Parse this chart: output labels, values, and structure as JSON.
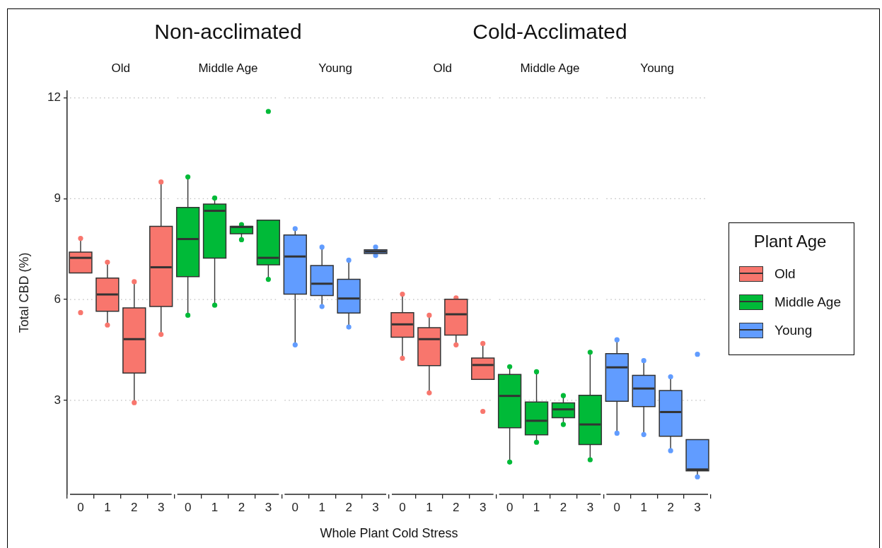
{
  "chart_data": {
    "type": "box",
    "xlabel": "Whole Plant Cold Stress",
    "ylabel": "Total CBD (%)",
    "legend": "right",
    "legend_title": "Plant Age",
    "annotations": [
      "Non-acclimated",
      "Cold-Acclimated"
    ],
    "categories": [
      "0",
      "1",
      "2",
      "3",
      "0",
      "1",
      "2",
      "3",
      "0",
      "1",
      "2",
      "3",
      "0",
      "1",
      "2",
      "3",
      "0",
      "1",
      "2",
      "3",
      "0",
      "1",
      "2",
      "3"
    ],
    "ylim": [
      0.2,
      12.2
    ],
    "yticks": [
      3,
      6,
      9,
      12
    ],
    "grid": "y",
    "series": [
      {
        "name": "Old",
        "color": "#f8766d",
        "boxes": [
          {
            "low": 6.79,
            "q1": 6.79,
            "median": 7.24,
            "q3": 7.41,
            "high": 7.82,
            "outliers": [
              7.82,
              5.61
            ]
          },
          {
            "low": 5.26,
            "q1": 5.65,
            "median": 6.15,
            "q3": 6.64,
            "high": 7.11,
            "outliers": [
              7.11,
              5.24
            ]
          },
          {
            "low": 2.95,
            "q1": 3.81,
            "median": 4.82,
            "q3": 5.75,
            "high": 6.53,
            "outliers": [
              6.53,
              2.93
            ]
          },
          {
            "low": 4.96,
            "q1": 5.79,
            "median": 6.96,
            "q3": 8.18,
            "high": 9.5,
            "outliers": [
              9.5,
              4.96
            ]
          },
          null,
          null,
          null,
          null,
          null,
          null,
          null,
          null,
          {
            "low": 4.29,
            "q1": 4.88,
            "median": 5.26,
            "q3": 5.61,
            "high": 6.16,
            "outliers": [
              6.16,
              4.25
            ]
          },
          {
            "low": 3.25,
            "q1": 4.03,
            "median": 4.82,
            "q3": 5.16,
            "high": 5.53,
            "outliers": [
              5.53,
              3.22
            ]
          },
          {
            "low": 4.65,
            "q1": 4.94,
            "median": 5.56,
            "q3": 6.01,
            "high": 6.01,
            "outliers": [
              6.05,
              4.65
            ]
          },
          {
            "low": 3.62,
            "q1": 3.62,
            "median": 4.05,
            "q3": 4.26,
            "high": 4.69,
            "outliers": [
              4.69,
              2.67
            ]
          },
          null,
          null,
          null,
          null,
          null,
          null,
          null,
          null
        ]
      },
      {
        "name": "Middle Age",
        "color": "#00ba38",
        "boxes": [
          null,
          null,
          null,
          null,
          {
            "low": 5.57,
            "q1": 6.68,
            "median": 7.8,
            "q3": 8.74,
            "high": 9.65,
            "outliers": [
              9.65,
              5.53
            ]
          },
          {
            "low": 5.83,
            "q1": 7.23,
            "median": 8.64,
            "q3": 8.84,
            "high": 9.02,
            "outliers": [
              9.02,
              5.83
            ]
          },
          {
            "low": 7.78,
            "q1": 7.96,
            "median": 8.16,
            "q3": 8.18,
            "high": 8.23,
            "outliers": [
              8.23,
              7.78
            ]
          },
          {
            "low": 6.6,
            "q1": 7.03,
            "median": 7.24,
            "q3": 8.36,
            "high": 8.36,
            "outliers": [
              11.6,
              6.6
            ]
          },
          null,
          null,
          null,
          null,
          null,
          null,
          null,
          null,
          {
            "low": 1.2,
            "q1": 2.18,
            "median": 3.13,
            "q3": 3.77,
            "high": 4.0,
            "outliers": [
              4.0,
              1.16
            ]
          },
          {
            "low": 1.79,
            "q1": 1.97,
            "median": 2.39,
            "q3": 2.95,
            "high": 3.85,
            "outliers": [
              3.85,
              1.75
            ]
          },
          {
            "low": 2.28,
            "q1": 2.48,
            "median": 2.73,
            "q3": 2.92,
            "high": 3.14,
            "outliers": [
              3.14,
              2.28
            ]
          },
          {
            "low": 1.25,
            "q1": 1.68,
            "median": 2.28,
            "q3": 3.15,
            "high": 4.43,
            "outliers": [
              4.43,
              1.23
            ]
          },
          null,
          null,
          null,
          null
        ]
      },
      {
        "name": "Young",
        "color": "#619cff",
        "boxes": [
          null,
          null,
          null,
          null,
          null,
          null,
          null,
          null,
          {
            "low": 4.65,
            "q1": 6.16,
            "median": 7.28,
            "q3": 7.92,
            "high": 8.11,
            "outliers": [
              8.11,
              4.65
            ]
          },
          {
            "low": 5.83,
            "q1": 6.12,
            "median": 6.47,
            "q3": 7.01,
            "high": 7.56,
            "outliers": [
              7.56,
              5.79
            ]
          },
          {
            "low": 5.18,
            "q1": 5.6,
            "median": 6.03,
            "q3": 6.6,
            "high": 7.17,
            "outliers": [
              7.17,
              5.18
            ]
          },
          {
            "low": 7.31,
            "q1": 7.37,
            "median": 7.43,
            "q3": 7.48,
            "high": 7.56,
            "outliers": [
              7.56,
              7.31
            ]
          },
          null,
          null,
          null,
          null,
          null,
          null,
          null,
          null,
          {
            "low": 2.02,
            "q1": 2.97,
            "median": 3.98,
            "q3": 4.39,
            "high": 4.8,
            "outliers": [
              4.8,
              2.02
            ]
          },
          {
            "low": 1.98,
            "q1": 2.81,
            "median": 3.35,
            "q3": 3.74,
            "high": 4.18,
            "outliers": [
              4.18,
              1.98
            ]
          },
          {
            "low": 1.5,
            "q1": 1.93,
            "median": 2.65,
            "q3": 3.29,
            "high": 3.7,
            "outliers": [
              3.7,
              1.5
            ]
          },
          {
            "low": 0.72,
            "q1": 0.9,
            "median": 0.94,
            "q3": 1.83,
            "high": 1.83,
            "outliers": [
              4.37,
              0.72
            ]
          }
        ]
      }
    ]
  }
}
